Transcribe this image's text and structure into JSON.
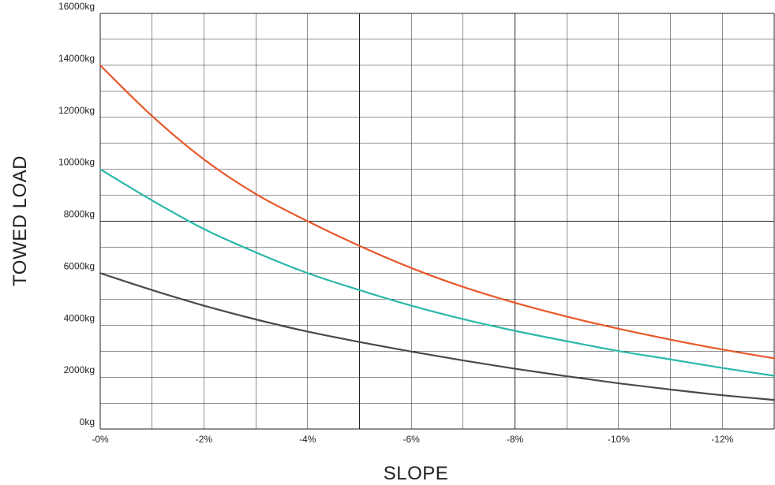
{
  "chart_data": {
    "type": "line",
    "title": "",
    "xlabel": "SLOPE",
    "ylabel": "TOWED LOAD",
    "x_ticks": [
      0,
      -2,
      -4,
      -6,
      -8,
      -10,
      -12
    ],
    "x_tick_labels": [
      "-0%",
      "-2%",
      "-4%",
      "-6%",
      "-8%",
      "-10%",
      "-12%"
    ],
    "xlim": [
      0,
      -13
    ],
    "y_ticks": [
      0,
      2000,
      4000,
      6000,
      8000,
      10000,
      12000,
      14000,
      16000
    ],
    "y_tick_labels": [
      "0kg",
      "2000kg",
      "4000kg",
      "6000kg",
      "8000kg",
      "10000kg",
      "12000kg",
      "14000kg",
      "16000kg"
    ],
    "ylim": [
      0,
      16000
    ],
    "grid": true,
    "grid_x_step": 1,
    "grid_y_step": 1000,
    "x": [
      0,
      -1,
      -2,
      -3,
      -4,
      -5,
      -6,
      -7,
      -8,
      -9,
      -10,
      -11,
      -12,
      -13
    ],
    "series": [
      {
        "color": "#e8582a",
        "values": [
          14000,
          12050,
          10380,
          9050,
          8000,
          7050,
          6200,
          5470,
          4860,
          4330,
          3860,
          3440,
          3060,
          2720
        ]
      },
      {
        "color": "#2ab8a8",
        "values": [
          10000,
          8800,
          7700,
          6800,
          6000,
          5350,
          4750,
          4230,
          3780,
          3380,
          3000,
          2680,
          2350,
          2050
        ]
      },
      {
        "color": "#4a4a4a",
        "values": [
          6000,
          5350,
          4750,
          4220,
          3750,
          3350,
          2980,
          2640,
          2320,
          2030,
          1760,
          1520,
          1300,
          1120
        ]
      }
    ]
  }
}
